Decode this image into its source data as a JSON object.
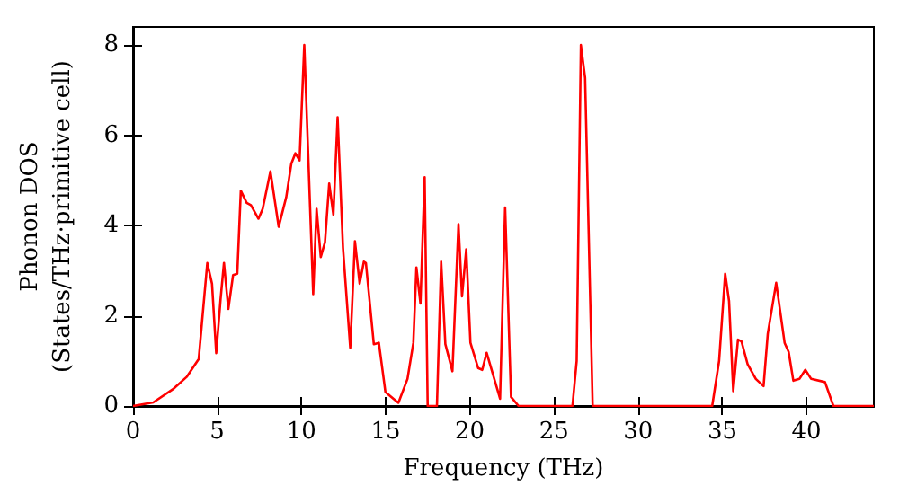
{
  "chart_data": {
    "type": "line",
    "xlabel": "Frequency (THz)",
    "ylabel": "Phonon DOS\n(States/THz·primitive cell)",
    "xlim": [
      0,
      44
    ],
    "xticks": [
      0,
      5,
      10,
      15,
      20,
      25,
      30,
      35,
      40
    ],
    "ylim": [
      0,
      8.4
    ],
    "yticks": [
      0,
      2,
      4,
      6,
      8
    ],
    "grid": false,
    "marker": "none",
    "line_style": "solid",
    "series": [
      {
        "color": "#ff0000",
        "x": [
          0,
          1.2,
          2.36,
          3.2,
          3.9,
          4.06,
          4.41,
          4.69,
          4.94,
          5.2,
          5.4,
          5.66,
          5.94,
          6.19,
          6.4,
          6.75,
          7.0,
          7.45,
          7.7,
          8.16,
          8.65,
          9.1,
          9.4,
          9.64,
          9.89,
          10.17,
          10.7,
          10.9,
          11.15,
          11.4,
          11.65,
          11.9,
          12.15,
          12.47,
          12.9,
          13.18,
          13.46,
          13.71,
          13.83,
          14.3,
          14.6,
          14.99,
          15.76,
          16.3,
          16.65,
          16.83,
          17.07,
          17.32,
          17.5,
          18.05,
          18.3,
          18.55,
          18.97,
          19.33,
          19.54,
          19.79,
          20.04,
          20.5,
          20.74,
          21.0,
          21.8,
          22.1,
          22.45,
          22.9,
          26.1,
          26.35,
          26.6,
          26.85,
          27.3,
          34.4,
          34.81,
          35.17,
          35.4,
          35.65,
          35.93,
          36.14,
          36.5,
          36.99,
          37.45,
          37.7,
          38.2,
          38.7,
          38.94,
          39.22,
          39.58,
          39.93,
          40.28,
          41.1,
          41.6,
          44
        ],
        "values": [
          0,
          0.08,
          0.37,
          0.65,
          1.04,
          1.71,
          3.17,
          2.71,
          1.17,
          2.37,
          3.17,
          2.15,
          2.9,
          2.93,
          4.77,
          4.5,
          4.45,
          4.15,
          4.37,
          5.2,
          3.97,
          4.63,
          5.37,
          5.6,
          5.44,
          8.0,
          2.48,
          4.37,
          3.3,
          3.63,
          4.93,
          4.24,
          6.4,
          3.5,
          1.29,
          3.65,
          2.71,
          3.2,
          3.17,
          1.37,
          1.4,
          0.31,
          0.07,
          0.6,
          1.4,
          3.07,
          2.27,
          5.07,
          0,
          0,
          3.2,
          1.37,
          0.77,
          4.03,
          2.43,
          3.47,
          1.4,
          0.84,
          0.8,
          1.18,
          0.16,
          4.4,
          0.2,
          0,
          0,
          1.0,
          8.0,
          7.27,
          0,
          0,
          1.0,
          2.93,
          2.33,
          0.33,
          1.47,
          1.43,
          0.93,
          0.6,
          0.44,
          1.6,
          2.73,
          1.4,
          1.2,
          0.56,
          0.6,
          0.8,
          0.6,
          0.53,
          0,
          0
        ]
      }
    ]
  }
}
